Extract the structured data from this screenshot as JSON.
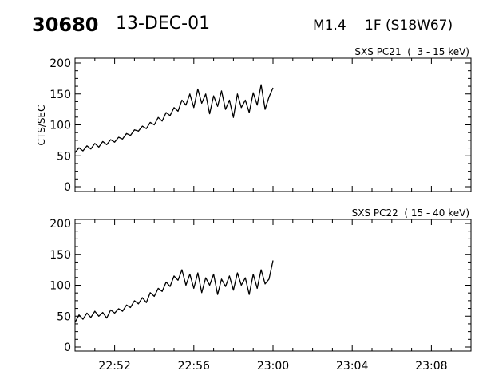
{
  "header": {
    "event_id": "30680",
    "date": "13-DEC-01",
    "goes_class": "M1.4",
    "location": "1F (S18W67)"
  },
  "chart_data": [
    {
      "type": "line",
      "title": "SXS PC21  (  3 - 15 keV)",
      "ylabel": "CTS/SEC",
      "xlabel": "",
      "x_unit": "minutes after 22:50 UT",
      "xlim": [
        0,
        20
      ],
      "ylim": [
        0,
        200
      ],
      "yticks": [
        "0",
        "50",
        "100",
        "150",
        "200"
      ],
      "x_start": 0,
      "x_step": 0.2,
      "values": [
        55,
        63,
        58,
        66,
        61,
        70,
        64,
        73,
        68,
        76,
        72,
        80,
        77,
        86,
        83,
        92,
        90,
        98,
        94,
        104,
        100,
        112,
        106,
        120,
        115,
        128,
        122,
        140,
        132,
        150,
        128,
        158,
        135,
        150,
        118,
        147,
        130,
        155,
        125,
        140,
        112,
        150,
        128,
        140,
        120,
        152,
        132,
        165,
        125,
        145,
        160
      ]
    },
    {
      "type": "line",
      "title": "SXS PC22  ( 15 - 40 keV)",
      "ylabel": "",
      "xlabel": "",
      "x_unit": "minutes after 22:50 UT",
      "xlim": [
        0,
        20
      ],
      "ylim": [
        0,
        200
      ],
      "yticks": [
        "0",
        "50",
        "100",
        "150",
        "200"
      ],
      "xticks": [
        {
          "value": 2,
          "label": "22:52"
        },
        {
          "value": 6,
          "label": "22:56"
        },
        {
          "value": 10,
          "label": "23:00"
        },
        {
          "value": 14,
          "label": "23:04"
        },
        {
          "value": 18,
          "label": "23:08"
        }
      ],
      "x_start": 0,
      "x_step": 0.2,
      "values": [
        40,
        52,
        45,
        55,
        48,
        58,
        50,
        56,
        47,
        60,
        55,
        62,
        58,
        68,
        64,
        75,
        70,
        80,
        72,
        88,
        82,
        95,
        90,
        105,
        98,
        115,
        108,
        125,
        100,
        118,
        95,
        120,
        88,
        112,
        100,
        118,
        85,
        110,
        98,
        115,
        92,
        120,
        100,
        112,
        85,
        118,
        95,
        125,
        102,
        110,
        140
      ]
    }
  ]
}
